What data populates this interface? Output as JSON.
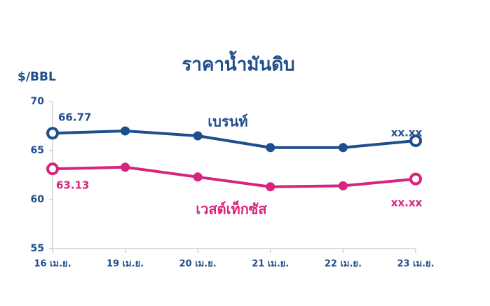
{
  "chart_data": {
    "type": "line",
    "title": "ราคาน้ำมันดิบ",
    "y_label": "$/BBL",
    "categories": [
      "16 เม.ย.",
      "19 เม.ย.",
      "20 เม.ย.",
      "21 เม.ย.",
      "22 เม.ย.",
      "23 เม.ย."
    ],
    "series": [
      {
        "name": "เบรนท์",
        "color": "#1f4e8c",
        "values": [
          66.77,
          67.0,
          66.5,
          65.3,
          65.3,
          66.0
        ],
        "value_labels": [
          "66.77",
          null,
          null,
          null,
          null,
          null
        ]
      },
      {
        "name": "เวสต์เท็กซัส",
        "color": "#d6247f",
        "values": [
          63.13,
          63.3,
          62.3,
          61.3,
          61.4,
          62.1
        ],
        "value_labels": [
          "63.13",
          null,
          null,
          null,
          null,
          null
        ]
      }
    ],
    "annotations": [
      "xx.xx",
      "xx.xx"
    ],
    "ylim": [
      55,
      70
    ],
    "yticks": [
      55,
      60,
      65,
      70
    ]
  }
}
